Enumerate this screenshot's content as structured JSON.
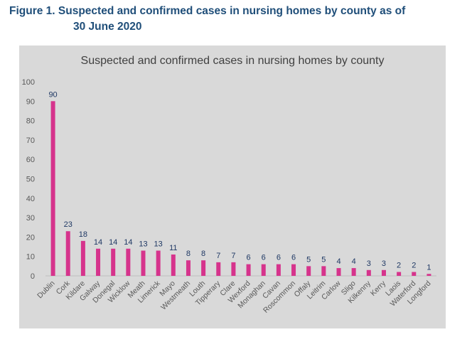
{
  "figure_caption": {
    "line1": "Figure 1. Suspected and confirmed cases in nursing homes by county as of",
    "line2": "30 June 2020"
  },
  "chart_data": {
    "type": "bar",
    "title": "Suspected and confirmed cases in nursing homes by county",
    "xlabel": "",
    "ylabel": "",
    "ylim": [
      0,
      100
    ],
    "yticks": [
      0,
      10,
      20,
      30,
      40,
      50,
      60,
      70,
      80,
      90,
      100
    ],
    "categories": [
      "Dublin",
      "Cork",
      "Kildare",
      "Galway",
      "Donegal",
      "Wicklow",
      "Meath",
      "Limerick",
      "Mayo",
      "Westmeath",
      "Louth",
      "Tipperary",
      "Clare",
      "Wexford",
      "Monaghan",
      "Cavan",
      "Roscommon",
      "Offaly",
      "Leitrim",
      "Carlow",
      "Sligo",
      "Kilkenny",
      "Kerry",
      "Laois",
      "Waterford",
      "Longford"
    ],
    "values": [
      90,
      23,
      18,
      14,
      14,
      14,
      13,
      13,
      11,
      8,
      8,
      7,
      7,
      6,
      6,
      6,
      6,
      5,
      5,
      4,
      4,
      3,
      3,
      2,
      2,
      1
    ],
    "grid": false,
    "data_labels": true,
    "colors": {
      "bar": "#d6338c",
      "background": "#d9d9d9",
      "data_label": "#1f3864",
      "tick_label": "#595959",
      "axis_line": "#bfbfbf"
    }
  }
}
